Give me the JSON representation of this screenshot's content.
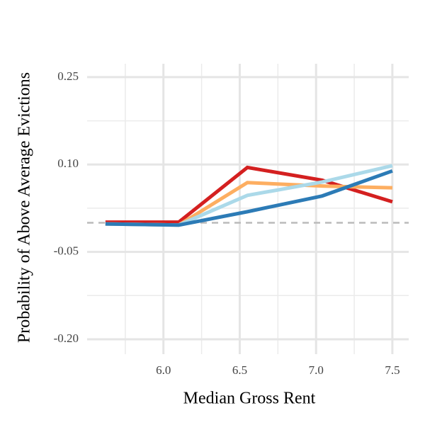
{
  "chart_data": {
    "type": "line",
    "x_label": "Median Gross Rent",
    "y_label": "Probability of Above Average Evictions",
    "xlim": [
      5.5,
      7.607
    ],
    "xticks": [
      {
        "value": 6,
        "label": "6.0"
      },
      6.5,
      {
        "value": 7,
        "label": "7.0"
      },
      7.5
    ],
    "x_minor_ticks": [
      5.75,
      6.25,
      6.75,
      7.25
    ],
    "ylim": [
      -0.2256,
      0.273
    ],
    "yticks": [
      0.25,
      {
        "value": 0.1,
        "label": "0.10"
      },
      -0.05,
      {
        "value": -0.2,
        "label": "-0.20"
      }
    ],
    "y_minor_ticks": [
      0.175,
      0.025,
      -0.125
    ],
    "grid": true,
    "reference_line": {
      "y": 0,
      "color": "#bbbbbb",
      "dashed": true
    },
    "x": [
      5.62,
      6.1,
      6.55,
      7.04,
      7.5
    ],
    "series": [
      {
        "color": "#d42020",
        "values": [
          0.001,
          0.001,
          0.095,
          0.073,
          0.036
        ]
      },
      {
        "color": "#fdae61",
        "values": [
          -0.002,
          -0.004,
          0.069,
          0.063,
          0.06
        ]
      },
      {
        "color": "#abd9e9",
        "values": [
          -0.002,
          -0.004,
          0.047,
          0.07,
          0.098
        ]
      },
      {
        "color": "#2c7bb6",
        "values": [
          -0.002,
          -0.004,
          0.019,
          0.046,
          0.089
        ]
      }
    ]
  }
}
